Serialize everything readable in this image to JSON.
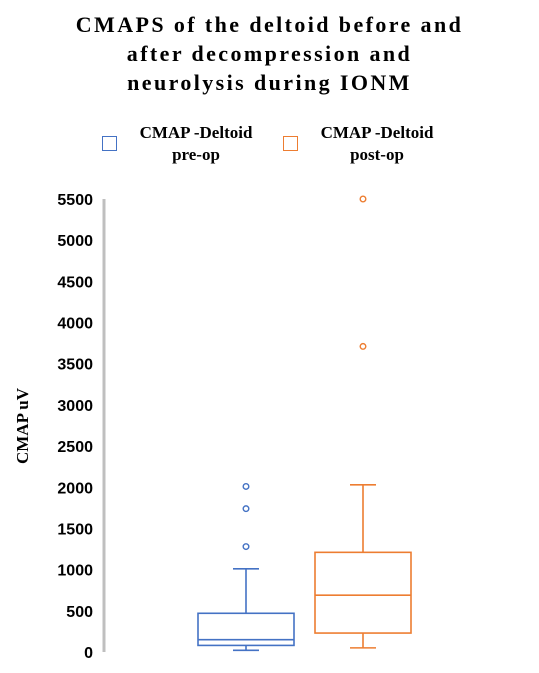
{
  "chart_data": {
    "type": "box",
    "title_lines": [
      "CMAPS of the deltoid before and",
      "after decompression and",
      "neurolysis during IONM"
    ],
    "ylabel": "CMAP uV",
    "xlabel": "",
    "ylim": [
      0,
      5500
    ],
    "yticks": [
      "0",
      "500",
      "1000",
      "1500",
      "2000",
      "2500",
      "3000",
      "3500",
      "4000",
      "4500",
      "5000",
      "5500"
    ],
    "legend_position": "top",
    "series": [
      {
        "legend_lines": [
          "CMAP -Deltoid",
          "pre-op"
        ],
        "color": "#4472C4",
        "min": 20,
        "q1": 80,
        "median": 150,
        "q3": 470,
        "max": 1010,
        "outliers": [
          1280,
          1740,
          2010
        ]
      },
      {
        "legend_lines": [
          "CMAP -Deltoid",
          "post-op"
        ],
        "color": "#ED7D31",
        "min": 50,
        "q1": 230,
        "median": 690,
        "q3": 1210,
        "max": 2030,
        "outliers": [
          3710,
          5500
        ]
      }
    ]
  }
}
